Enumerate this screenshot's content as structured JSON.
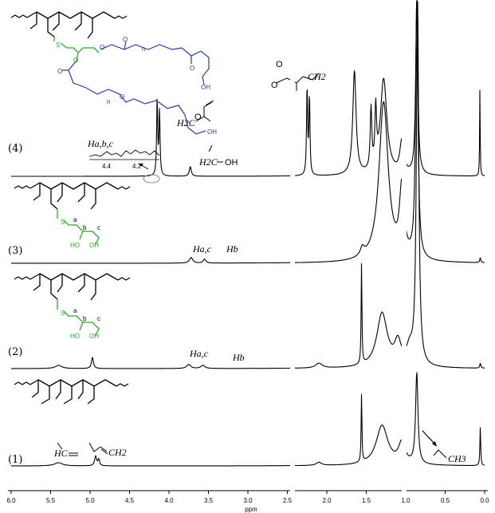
{
  "chart_data": {
    "type": "line",
    "title": "",
    "xlabel": "ppm",
    "ylabel": "",
    "xlim": [
      6.0,
      0.0
    ],
    "x_reversed": true,
    "x_ticks": [
      "6.0",
      "5.5",
      "5.0",
      "4.5",
      "4.0",
      "3.5",
      "3.0",
      "2.5",
      "2.0",
      "1.5",
      "1.0",
      "0.5",
      "0.0"
    ],
    "series": [
      {
        "name": "(1)",
        "peaks_ppm": [
          5.4,
          4.93,
          2.1,
          1.56,
          1.3,
          1.05,
          0.85,
          0.05
        ]
      },
      {
        "name": "(2)",
        "peaks_ppm": [
          5.4,
          4.97,
          3.75,
          3.57,
          2.1,
          1.56,
          1.28,
          0.85,
          0.05
        ]
      },
      {
        "name": "(3)",
        "peaks_ppm": [
          3.72,
          3.55,
          1.55,
          1.3,
          1.05,
          0.85,
          0.05
        ]
      },
      {
        "name": "(4)",
        "peaks_ppm": [
          4.15,
          3.73,
          2.24,
          1.65,
          1.43,
          1.38,
          1.28,
          1.05,
          0.85,
          0.06
        ]
      }
    ],
    "annotations": {
      "s1_a": "HC",
      "s1_b": "CH2",
      "s1_c": "CH3",
      "s2_a": "Ha,c",
      "s2_b": "Hb",
      "s3_a": "Ha,c",
      "s3_b": "Hb",
      "s4_a": "Ha,b,c",
      "s4_b": "H2C",
      "s4_c": "O",
      "s4_d": "H2C",
      "s4_e": "OH",
      "s4_f": "O",
      "s4_g": "O",
      "s4_h": "CH2",
      "inset_ticks": [
        "4.4",
        "4.2"
      ]
    },
    "structure_labels": {
      "s": "S",
      "a": "a",
      "b": "b",
      "c": "c",
      "ho": "HO",
      "oh": "OH",
      "o": "O",
      "n": "n",
      "oh_end": "OH"
    },
    "colors": {
      "spectrum": "#000000",
      "thiol_unit": "#2fa52f",
      "polyester": "#2a3c9c"
    }
  }
}
